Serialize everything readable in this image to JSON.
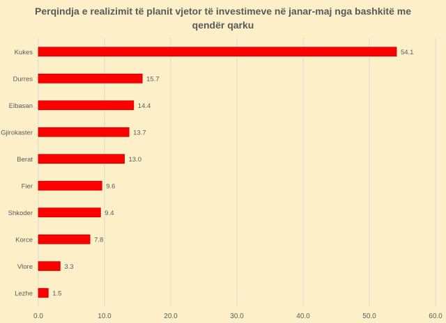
{
  "chart_data": {
    "type": "bar",
    "orientation": "horizontal",
    "title": "Perqindja e realizimit të planit vjetor të investimeve në janar-maj nga bashkitë me qendër qarku",
    "categories": [
      "Kukes",
      "Durres",
      "Elbasan",
      "Gjirokaster",
      "Berat",
      "Fier",
      "Shkoder",
      "Korce",
      "Vlore",
      "Lezhe"
    ],
    "values": [
      54.1,
      15.7,
      14.4,
      13.7,
      13.0,
      9.6,
      9.4,
      7.8,
      3.3,
      1.5
    ],
    "value_labels": [
      "54.1",
      "15.7",
      "14.4",
      "13.7",
      "13.0",
      "9.6",
      "9.4",
      "7.8",
      "3.3",
      "1.5"
    ],
    "xlim": [
      0,
      60
    ],
    "x_ticks": [
      "0.0",
      "10.0",
      "20.0",
      "30.0",
      "40.0",
      "50.0",
      "60.0"
    ],
    "grid": true,
    "legend": "none",
    "colors": {
      "background": "#fdefc8",
      "bar": "#ff0000",
      "bar_edge": "#c00000",
      "grid": "#d9d9d9",
      "text": "#595959"
    }
  }
}
